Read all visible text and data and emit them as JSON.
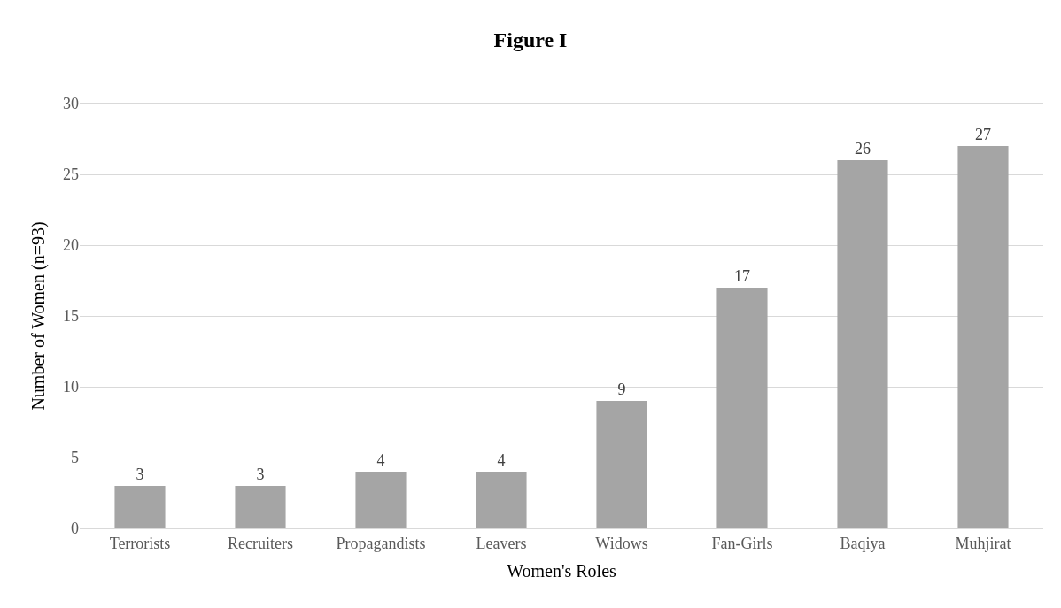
{
  "chart_data": {
    "type": "bar",
    "title": "Figure I",
    "xlabel": "Women's Roles",
    "ylabel": "Number of Women (n=93)",
    "categories": [
      "Terrorists",
      "Recruiters",
      "Propagandists",
      "Leavers",
      "Widows",
      "Fan-Girls",
      "Baqiya",
      "Muhjirat"
    ],
    "values": [
      3,
      3,
      4,
      4,
      9,
      17,
      26,
      27
    ],
    "color": "#a5a5a5",
    "ylim": [
      0,
      30
    ],
    "yticks": [
      0,
      5,
      10,
      15,
      20,
      25,
      30
    ],
    "grid": "y",
    "data_labels": true
  }
}
